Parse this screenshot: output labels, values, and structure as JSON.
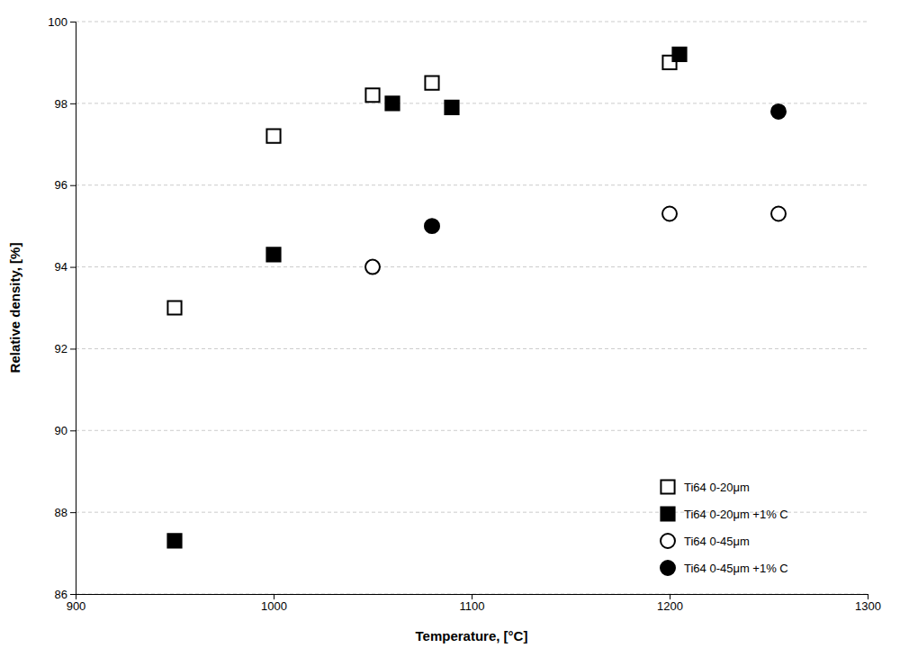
{
  "chart_data": {
    "type": "scatter",
    "xlabel": "Temperature, [°C]",
    "ylabel": "Relative density, [%]",
    "xlim": [
      900,
      1300
    ],
    "ylim": [
      86,
      100
    ],
    "xticks": [
      900,
      1000,
      1100,
      1200,
      1300
    ],
    "yticks": [
      86,
      88,
      90,
      92,
      94,
      96,
      98,
      100
    ],
    "grid": "y",
    "legend": "lower right",
    "series": [
      {
        "name": "Ti64 0-20μm",
        "color": "black",
        "marker": "square-open",
        "x": [
          950,
          1000,
          1050,
          1080,
          1200
        ],
        "values": [
          93.0,
          97.2,
          98.2,
          98.5,
          99.0
        ]
      },
      {
        "name": "Ti64 0-20μm +1% C",
        "color": "black",
        "marker": "square",
        "x": [
          950,
          1000,
          1060,
          1090,
          1205
        ],
        "values": [
          87.3,
          94.3,
          98.0,
          97.9,
          99.2
        ]
      },
      {
        "name": "Ti64 0-45μm",
        "color": "black",
        "marker": "circle-open",
        "x": [
          1050,
          1200,
          1255
        ],
        "values": [
          94.0,
          95.3,
          95.3
        ]
      },
      {
        "name": "Ti64 0-45μm +1% C",
        "color": "black",
        "marker": "circle",
        "x": [
          1080,
          1255
        ],
        "values": [
          95.0,
          97.8
        ]
      }
    ]
  }
}
